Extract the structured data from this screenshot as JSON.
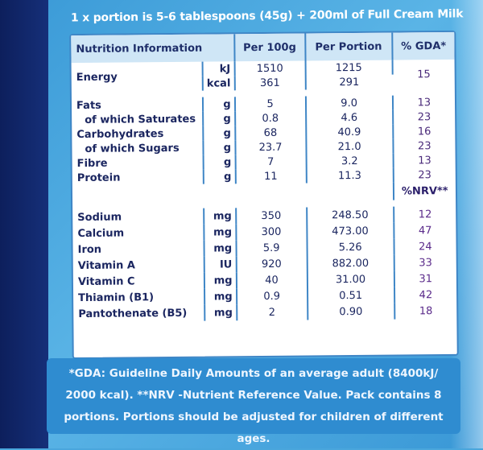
{
  "header": "1 x portion is 5-6 tablespoons (45g) + 200ml of Full Cream Milk",
  "columns": [
    "Nutrition Information",
    "Per 100g",
    "Per Portion",
    "% GDA*"
  ],
  "energy": {
    "label": "Energy",
    "units": [
      "kJ",
      "kcal"
    ],
    "per100": [
      "1510",
      "361"
    ],
    "perPortion": [
      "1215",
      "291"
    ],
    "gda": "15"
  },
  "rows": [
    {
      "label": "Fats",
      "unit": "g",
      "per100": "5",
      "perPortion": "9.0",
      "gda": "13",
      "indent": false
    },
    {
      "label": "of which Saturates",
      "unit": "g",
      "per100": "0.8",
      "perPortion": "4.6",
      "gda": "23",
      "indent": true
    },
    {
      "label": "Carbohydrates",
      "unit": "g",
      "per100": "68",
      "perPortion": "40.9",
      "gda": "16",
      "indent": false
    },
    {
      "label": "of which Sugars",
      "unit": "g",
      "per100": "23.7",
      "perPortion": "21.0",
      "gda": "23",
      "indent": true
    },
    {
      "label": "Fibre",
      "unit": "g",
      "per100": "7",
      "perPortion": "3.2",
      "gda": "13",
      "indent": false
    },
    {
      "label": "Protein",
      "unit": "g",
      "per100": "11",
      "perPortion": "11.3",
      "gda": "23",
      "indent": false
    }
  ],
  "nrv_header": "%NRV**",
  "minerals": [
    {
      "label": "Sodium",
      "unit": "mg",
      "per100": "350",
      "perPortion": "248.50",
      "pct": "12"
    },
    {
      "label": "Calcium",
      "unit": "mg",
      "per100": "300",
      "perPortion": "473.00",
      "pct": "47"
    },
    {
      "label": "Iron",
      "unit": "mg",
      "per100": "5.9",
      "perPortion": "5.26",
      "pct": "24"
    },
    {
      "label": "Vitamin A",
      "unit": "IU",
      "per100": "920",
      "perPortion": "882.00",
      "pct": "33"
    },
    {
      "label": "Vitamin C",
      "unit": "mg",
      "per100": "40",
      "perPortion": "31.00",
      "pct": "31"
    },
    {
      "label": "Thiamin (B1)",
      "unit": "mg",
      "per100": "0.9",
      "perPortion": "0.51",
      "pct": "42"
    },
    {
      "label": "Pantothenate (B5)",
      "unit": "mg",
      "per100": "2",
      "perPortion": "0.90",
      "pct": "18"
    }
  ],
  "footer": "*GDA: Guideline Daily Amounts of an average adult (8400kJ/ 2000 kcal). **NRV -Nutrient Reference Value. Pack contains 8 portions. Portions should be adjusted for children of different ages."
}
